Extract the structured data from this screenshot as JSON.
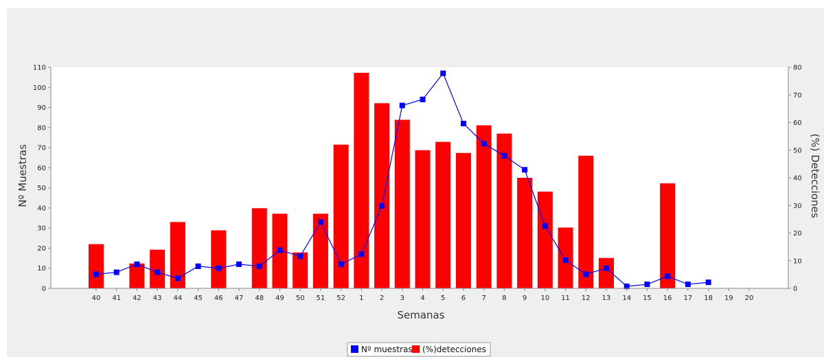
{
  "chart_data": {
    "type": "bar+line",
    "categories": [
      "40",
      "41",
      "42",
      "43",
      "44",
      "45",
      "46",
      "47",
      "48",
      "49",
      "50",
      "51",
      "52",
      "1",
      "2",
      "3",
      "4",
      "5",
      "6",
      "7",
      "8",
      "9",
      "10",
      "11",
      "12",
      "13",
      "14",
      "15",
      "16",
      "17",
      "18",
      "19",
      "20"
    ],
    "xlabel": "Semanas",
    "ylabel_left": "Nº Muestras",
    "ylabel_right": "(%) Detecciones",
    "ylim_left": [
      0,
      110
    ],
    "ylim_right": [
      0,
      80
    ],
    "yticks_left": [
      "0",
      "10",
      "20",
      "30",
      "40",
      "50",
      "60",
      "70",
      "80",
      "90",
      "100",
      "110"
    ],
    "yticks_right": [
      "0",
      "10",
      "20",
      "30",
      "40",
      "50",
      "60",
      "70",
      "80"
    ],
    "series": [
      {
        "name": "(%)detecciones",
        "type": "bar",
        "axis": "right",
        "color": "#ff0000",
        "values": [
          16,
          null,
          9,
          14,
          24,
          null,
          21,
          null,
          29,
          27,
          13,
          27,
          52,
          78,
          67,
          61,
          50,
          53,
          49,
          59,
          56,
          40,
          35,
          22,
          48,
          11,
          null,
          null,
          38,
          null,
          null,
          null,
          null
        ]
      },
      {
        "name": "Nº muestras",
        "type": "line",
        "axis": "left",
        "color": "#0000ff",
        "values": [
          7,
          8,
          12,
          8,
          5,
          11,
          10,
          12,
          11,
          19,
          16,
          33,
          12,
          17,
          41,
          91,
          94,
          107,
          82,
          72,
          66,
          59,
          31,
          14,
          7,
          10,
          1,
          2,
          6,
          2,
          3,
          null,
          null
        ]
      }
    ],
    "legend": {
      "placement": "bottom-center",
      "items": [
        {
          "label": "Nº muestras",
          "color": "#0000ff"
        },
        {
          "label": "(%)detecciones",
          "color": "#ff0000"
        }
      ]
    },
    "grid": false
  }
}
